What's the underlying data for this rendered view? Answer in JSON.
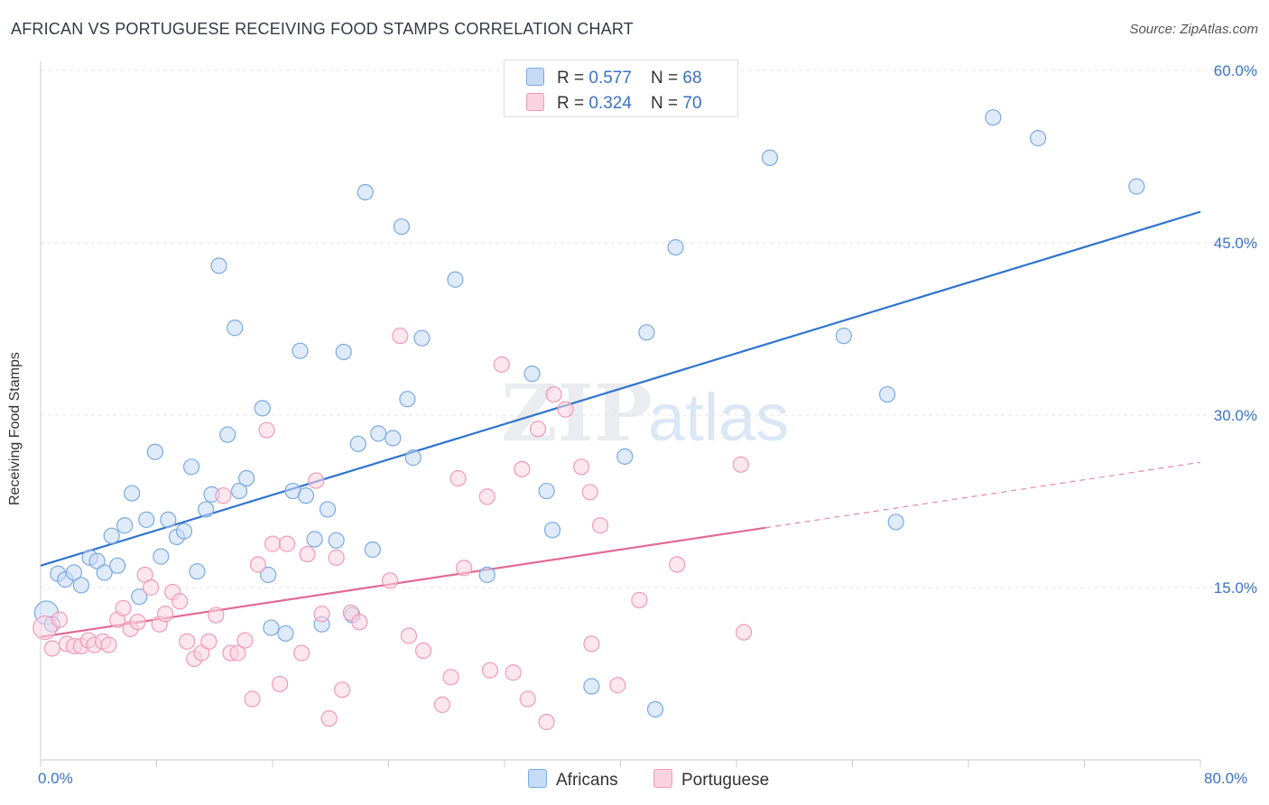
{
  "title": "AFRICAN VS PORTUGUESE RECEIVING FOOD STAMPS CORRELATION CHART",
  "source": "Source: ZipAtlas.com",
  "watermark": {
    "zip": "ZIP",
    "atlas": "atlas"
  },
  "stats": [
    {
      "r_label": "R = ",
      "r": "0.577",
      "n_label": "N = ",
      "n": "68",
      "color": "#a9c8f0"
    },
    {
      "r_label": "R = ",
      "r": "0.324",
      "n_label": "N = ",
      "n": "70",
      "color": "#f7bcd0"
    }
  ],
  "legend": [
    {
      "label": "Africans",
      "color": "#a9c8f0"
    },
    {
      "label": "Portuguese",
      "color": "#f7bcd0"
    }
  ],
  "chart_data": {
    "type": "scatter",
    "ylabel": "Receiving Food Stamps",
    "xlim": [
      0,
      80
    ],
    "ylim": [
      0,
      60
    ],
    "x_tick_labels": [
      "0.0%",
      "80.0%"
    ],
    "y_ticks": [
      {
        "value": 15,
        "label": "15.0%"
      },
      {
        "value": 30,
        "label": "30.0%"
      },
      {
        "value": 45,
        "label": "45.0%"
      },
      {
        "value": 60,
        "label": "60.0%"
      }
    ],
    "grid": "horizontal dashed",
    "series": [
      {
        "name": "Africans",
        "color": "#7ba9e0",
        "fill": "#c6dbf5",
        "line_color": "#2f73cf",
        "trend": {
          "x0": 0,
          "y0": 16.9,
          "x1": 80,
          "y1": 47.7
        },
        "points": [
          [
            0.4,
            12.8
          ],
          [
            1.2,
            16.2
          ],
          [
            1.7,
            15.7
          ],
          [
            2.3,
            16.3
          ],
          [
            2.8,
            15.2
          ],
          [
            3.4,
            17.6
          ],
          [
            3.9,
            17.3
          ],
          [
            4.4,
            16.3
          ],
          [
            4.9,
            19.5
          ],
          [
            5.3,
            16.9
          ],
          [
            5.8,
            20.4
          ],
          [
            6.3,
            23.2
          ],
          [
            6.8,
            14.2
          ],
          [
            7.3,
            20.9
          ],
          [
            7.9,
            26.8
          ],
          [
            8.3,
            17.7
          ],
          [
            8.8,
            20.9
          ],
          [
            9.4,
            19.4
          ],
          [
            9.9,
            19.9
          ],
          [
            10.4,
            25.5
          ],
          [
            10.8,
            16.4
          ],
          [
            11.4,
            21.8
          ],
          [
            11.8,
            23.1
          ],
          [
            12.3,
            43.0
          ],
          [
            12.9,
            28.3
          ],
          [
            13.4,
            37.6
          ],
          [
            13.7,
            23.4
          ],
          [
            14.2,
            24.5
          ],
          [
            15.3,
            30.6
          ],
          [
            15.7,
            16.1
          ],
          [
            15.9,
            11.5
          ],
          [
            16.9,
            11.0
          ],
          [
            17.4,
            23.4
          ],
          [
            17.9,
            35.6
          ],
          [
            18.3,
            23.0
          ],
          [
            18.9,
            19.2
          ],
          [
            19.4,
            11.8
          ],
          [
            19.8,
            21.8
          ],
          [
            20.4,
            19.1
          ],
          [
            20.9,
            35.5
          ],
          [
            21.5,
            12.6
          ],
          [
            21.9,
            27.5
          ],
          [
            22.4,
            49.4
          ],
          [
            22.9,
            18.3
          ],
          [
            23.3,
            28.4
          ],
          [
            24.3,
            28.0
          ],
          [
            24.9,
            46.4
          ],
          [
            25.3,
            31.4
          ],
          [
            25.7,
            26.3
          ],
          [
            26.3,
            36.7
          ],
          [
            28.6,
            41.8
          ],
          [
            30.8,
            16.1
          ],
          [
            33.9,
            33.6
          ],
          [
            34.9,
            23.4
          ],
          [
            35.3,
            20.0
          ],
          [
            38.0,
            6.4
          ],
          [
            40.3,
            26.4
          ],
          [
            41.8,
            37.2
          ],
          [
            42.4,
            4.4
          ],
          [
            43.8,
            44.6
          ],
          [
            50.3,
            52.4
          ],
          [
            55.4,
            36.9
          ],
          [
            58.4,
            31.8
          ],
          [
            59.0,
            20.7
          ],
          [
            65.7,
            55.9
          ],
          [
            68.8,
            54.1
          ],
          [
            75.6,
            49.9
          ],
          [
            0.8,
            11.8
          ]
        ]
      },
      {
        "name": "Portuguese",
        "color": "#f09ab7",
        "fill": "#f9d3e0",
        "line_color": "#e26a96",
        "trend": {
          "x0": 0,
          "y0": 10.7,
          "x1": 50,
          "y1": 20.2
        },
        "trend_dashed_to": {
          "x": 80,
          "y": 25.9
        },
        "points": [
          [
            0.3,
            11.5
          ],
          [
            0.8,
            9.7
          ],
          [
            1.3,
            12.2
          ],
          [
            1.8,
            10.1
          ],
          [
            2.3,
            9.9
          ],
          [
            2.8,
            9.9
          ],
          [
            3.3,
            10.4
          ],
          [
            3.7,
            10.0
          ],
          [
            4.3,
            10.3
          ],
          [
            4.7,
            10.0
          ],
          [
            5.3,
            12.2
          ],
          [
            5.7,
            13.2
          ],
          [
            6.2,
            11.4
          ],
          [
            6.7,
            12.0
          ],
          [
            7.2,
            16.1
          ],
          [
            7.6,
            15.0
          ],
          [
            8.2,
            11.8
          ],
          [
            8.6,
            12.7
          ],
          [
            9.1,
            14.6
          ],
          [
            9.6,
            13.8
          ],
          [
            10.1,
            10.3
          ],
          [
            10.6,
            8.8
          ],
          [
            11.1,
            9.3
          ],
          [
            11.6,
            10.3
          ],
          [
            12.1,
            12.6
          ],
          [
            12.6,
            23.0
          ],
          [
            13.1,
            9.3
          ],
          [
            13.6,
            9.3
          ],
          [
            14.1,
            10.4
          ],
          [
            14.6,
            5.3
          ],
          [
            15.0,
            17.0
          ],
          [
            15.6,
            28.7
          ],
          [
            16.0,
            18.8
          ],
          [
            16.5,
            6.6
          ],
          [
            17.0,
            18.8
          ],
          [
            18.0,
            9.3
          ],
          [
            18.4,
            17.9
          ],
          [
            19.0,
            24.3
          ],
          [
            19.4,
            12.7
          ],
          [
            19.9,
            3.6
          ],
          [
            20.4,
            17.6
          ],
          [
            20.8,
            6.1
          ],
          [
            21.4,
            12.8
          ],
          [
            22.0,
            12.0
          ],
          [
            24.1,
            15.6
          ],
          [
            24.8,
            36.9
          ],
          [
            25.4,
            10.8
          ],
          [
            26.4,
            9.5
          ],
          [
            27.7,
            4.8
          ],
          [
            28.3,
            7.2
          ],
          [
            28.8,
            24.5
          ],
          [
            29.2,
            16.7
          ],
          [
            30.8,
            22.9
          ],
          [
            31.0,
            7.8
          ],
          [
            31.8,
            34.4
          ],
          [
            32.6,
            7.6
          ],
          [
            33.2,
            25.3
          ],
          [
            33.6,
            5.3
          ],
          [
            34.3,
            28.8
          ],
          [
            34.9,
            3.3
          ],
          [
            35.4,
            31.8
          ],
          [
            36.2,
            30.5
          ],
          [
            37.3,
            25.5
          ],
          [
            37.9,
            23.3
          ],
          [
            38.0,
            10.1
          ],
          [
            38.6,
            20.4
          ],
          [
            39.8,
            6.5
          ],
          [
            41.3,
            13.9
          ],
          [
            43.9,
            17.0
          ],
          [
            48.5,
            11.1
          ]
        ]
      }
    ],
    "extra_points": [
      {
        "series": "Portuguese",
        "x": 48.3,
        "y": 25.7
      }
    ]
  }
}
